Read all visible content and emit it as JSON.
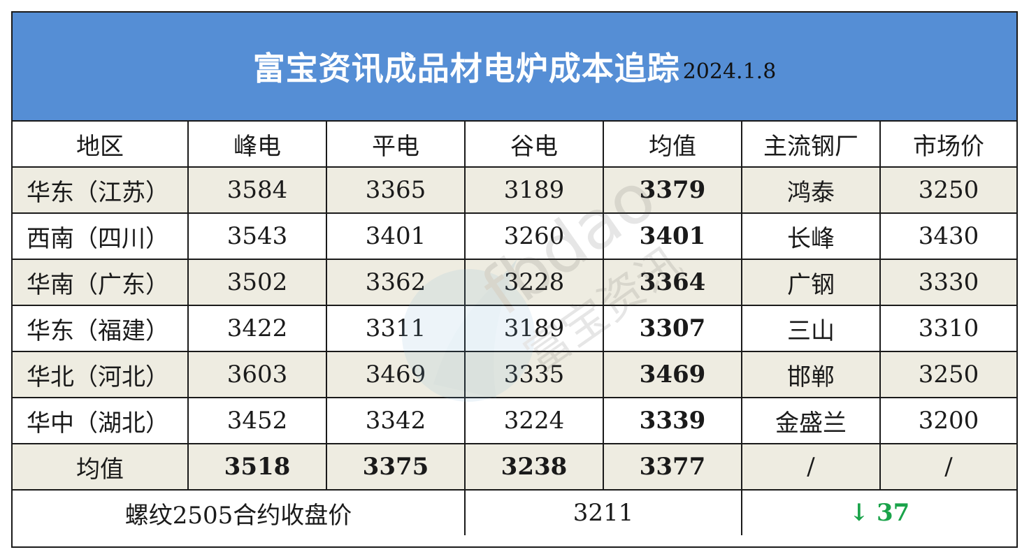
{
  "title": {
    "main": "富宝资讯成品材电炉成本追踪",
    "date": "2024.1.8"
  },
  "headers": [
    "地区",
    "峰电",
    "平电",
    "谷电",
    "均值",
    "主流钢厂",
    "市场价"
  ],
  "rows": [
    {
      "region": "华东（江苏）",
      "peak": "3584",
      "flat": "3365",
      "valley": "3189",
      "avg": "3379",
      "mill": "鸿泰",
      "market": "3250"
    },
    {
      "region": "西南（四川）",
      "peak": "3543",
      "flat": "3401",
      "valley": "3260",
      "avg": "3401",
      "mill": "长峰",
      "market": "3430"
    },
    {
      "region": "华南（广东）",
      "peak": "3502",
      "flat": "3362",
      "valley": "3228",
      "avg": "3364",
      "mill": "广钢",
      "market": "3330"
    },
    {
      "region": "华东（福建）",
      "peak": "3422",
      "flat": "3311",
      "valley": "3189",
      "avg": "3307",
      "mill": "三山",
      "market": "3310"
    },
    {
      "region": "华北（河北）",
      "peak": "3603",
      "flat": "3469",
      "valley": "3335",
      "avg": "3469",
      "mill": "邯郸",
      "market": "3250"
    },
    {
      "region": "华中（湖北）",
      "peak": "3452",
      "flat": "3342",
      "valley": "3224",
      "avg": "3339",
      "mill": "金盛兰",
      "market": "3200"
    }
  ],
  "average_row": {
    "label": "均值",
    "peak": "3518",
    "flat": "3375",
    "valley": "3238",
    "avg": "3377",
    "mill": "/",
    "market": "/"
  },
  "footer": {
    "label": "螺纹2505合约收盘价",
    "price": "3211",
    "change_arrow": "↓",
    "change_value": "37",
    "change_color": "#1aa34a"
  },
  "watermark": {
    "brand_latin": "fbdao",
    "brand_cn": "富宝资讯"
  },
  "colors": {
    "title_bg": "#558ed5",
    "alt_row_bg": "#eeece1"
  }
}
